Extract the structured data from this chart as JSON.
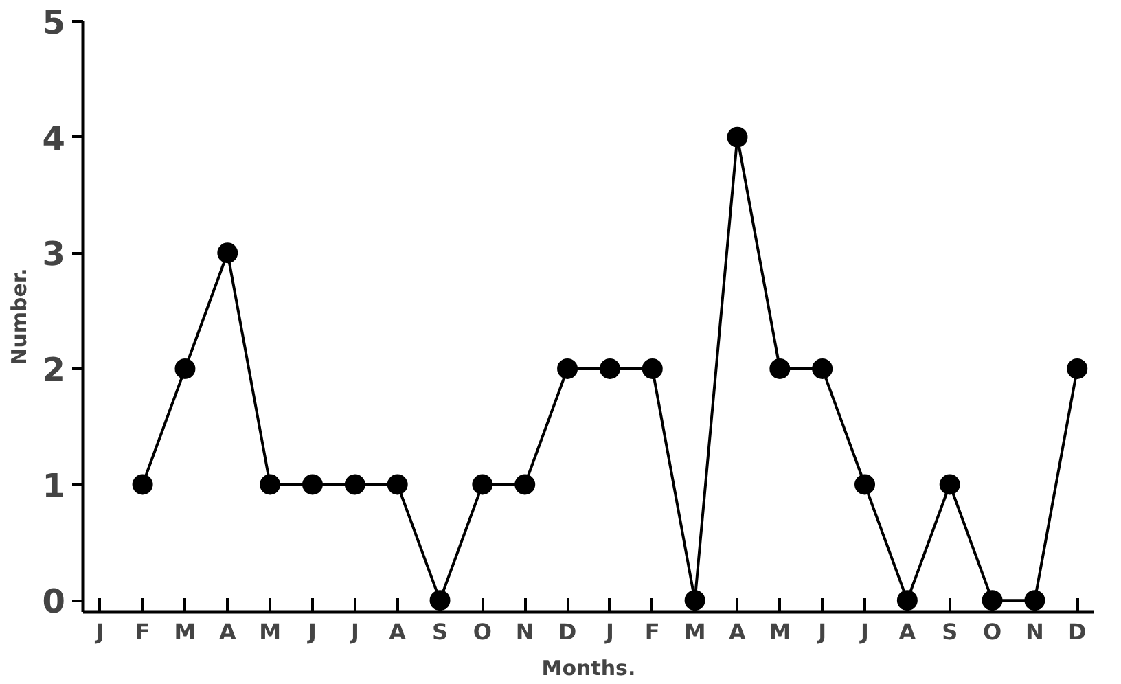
{
  "chart_data": {
    "type": "line",
    "xlabel": "Months.",
    "ylabel": "Number.",
    "categories": [
      "J",
      "F",
      "M",
      "A",
      "M",
      "J",
      "J",
      "A",
      "S",
      "O",
      "N",
      "D",
      "J",
      "F",
      "M",
      "A",
      "M",
      "J",
      "J",
      "A",
      "S",
      "O",
      "N",
      "D"
    ],
    "series": [
      {
        "color": "#000000",
        "values": [
          null,
          1,
          2,
          3,
          1,
          1,
          1,
          1,
          0,
          1,
          1,
          2,
          2,
          2,
          0,
          4,
          2,
          2,
          1,
          0,
          1,
          0,
          0,
          2
        ]
      }
    ],
    "ylim": [
      -0.1,
      5
    ],
    "yticks": [
      0,
      1,
      2,
      3,
      4,
      5
    ],
    "grid": false,
    "marker": "circle",
    "line_style": "solid"
  }
}
